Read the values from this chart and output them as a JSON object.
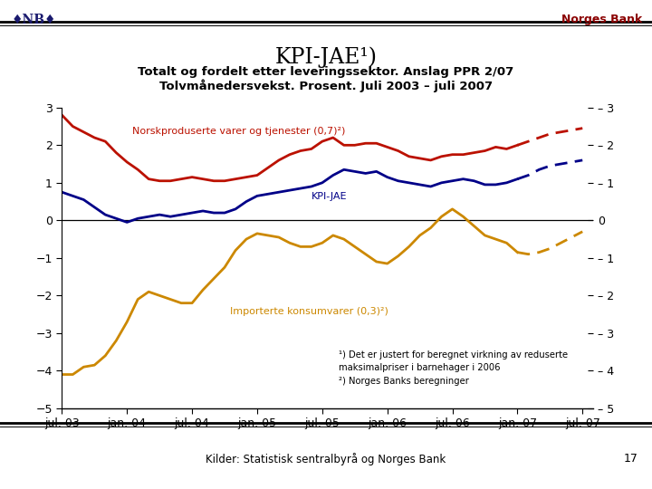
{
  "title_line1": "KPI-JAE¹)",
  "title_line2": "Totalt og fordelt etter leveringssektor. Anslag PPR 2/07",
  "title_line3": "Tolvmånedersvekst. Prosent. Juli 2003 – juli 2007",
  "header_left": "♥NB♥",
  "header_right": "Norges Bank",
  "footer": "Kilder: Statistisk sentralbyrå og Norges Bank",
  "footer_num": "17",
  "footnote1": "¹) Det er justert for beregnet virkning av reduserte",
  "footnote2": "maksimalpriser i barnehager i 2006",
  "footnote3": "²) Norges Banks beregninger",
  "label_red": "Norskproduserte varer og tjenester (0,7)²)",
  "label_blue": "KPI-JAE",
  "label_gold": "Importerte konsumvarer (0,3)²)",
  "ylim": [
    -5,
    3
  ],
  "yticks": [
    -5,
    -4,
    -3,
    -2,
    -1,
    0,
    1,
    2,
    3
  ],
  "ytick_labels_left": [
    "-5",
    "-4",
    "-3",
    "-2",
    "-1",
    "0",
    "1",
    "2",
    "3"
  ],
  "ytick_labels_right": [
    "-5",
    "-4",
    "-3",
    "-2",
    "-1",
    "0",
    "1",
    "2",
    "3"
  ],
  "color_red": "#BB1100",
  "color_blue": "#000088",
  "color_gold": "#CC8800",
  "background": "#FFFFFF",
  "red_solid": [
    2.8,
    2.5,
    2.35,
    2.2,
    2.1,
    1.8,
    1.55,
    1.35,
    1.1,
    1.05,
    1.05,
    1.1,
    1.15,
    1.1,
    1.05,
    1.05,
    1.1,
    1.15,
    1.2,
    1.4,
    1.6,
    1.75,
    1.85,
    1.9,
    2.1,
    2.2,
    2.0,
    2.0,
    2.05,
    2.05,
    1.95,
    1.85,
    1.7,
    1.65,
    1.6,
    1.7,
    1.75,
    1.75,
    1.8,
    1.85,
    1.95,
    1.9,
    2.0
  ],
  "blue_solid": [
    0.75,
    0.65,
    0.55,
    0.35,
    0.15,
    0.05,
    -0.05,
    0.05,
    0.1,
    0.15,
    0.1,
    0.15,
    0.2,
    0.25,
    0.2,
    0.2,
    0.3,
    0.5,
    0.65,
    0.7,
    0.75,
    0.8,
    0.85,
    0.9,
    1.0,
    1.2,
    1.35,
    1.3,
    1.25,
    1.3,
    1.15,
    1.05,
    1.0,
    0.95,
    0.9,
    1.0,
    1.05,
    1.1,
    1.05,
    0.95,
    0.95,
    1.0,
    1.1
  ],
  "gold_solid": [
    -4.1,
    -4.1,
    -3.9,
    -3.85,
    -3.6,
    -3.2,
    -2.7,
    -2.1,
    -1.9,
    -2.0,
    -2.1,
    -2.2,
    -2.2,
    -1.85,
    -1.55,
    -1.25,
    -0.8,
    -0.5,
    -0.35,
    -0.4,
    -0.45,
    -0.6,
    -0.7,
    -0.7,
    -0.6,
    -0.4,
    -0.5,
    -0.7,
    -0.9,
    -1.1,
    -1.15,
    -0.95,
    -0.7,
    -0.4,
    -0.2,
    0.1,
    0.3,
    0.1,
    -0.15,
    -0.4,
    -0.5,
    -0.6,
    -0.85
  ],
  "red_forecast": [
    2.0,
    2.1,
    2.2,
    2.3,
    2.35,
    2.4,
    2.45
  ],
  "blue_forecast": [
    1.1,
    1.2,
    1.35,
    1.45,
    1.5,
    1.55,
    1.6
  ],
  "gold_forecast": [
    -0.85,
    -0.9,
    -0.85,
    -0.75,
    -0.6,
    -0.45,
    -0.3
  ],
  "solid_n": 43,
  "xtick_positions": [
    0,
    6,
    12,
    18,
    24,
    30,
    36,
    42,
    48
  ],
  "xtick_labels": [
    "jul. 03",
    "jan. 04",
    "jul. 04",
    "jan. 05",
    "jul. 05",
    "jan. 06",
    "jul. 06",
    "jan. 07",
    "jul. 07"
  ],
  "xlim": [
    0,
    49
  ]
}
